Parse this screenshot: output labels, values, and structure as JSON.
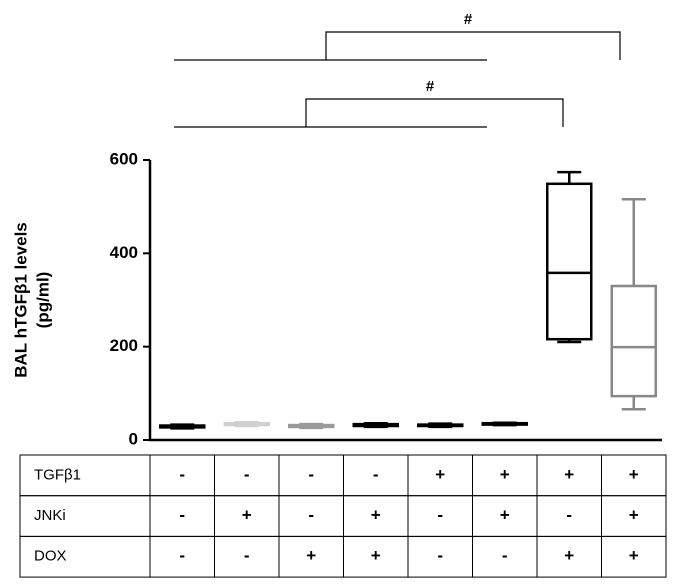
{
  "chart_data": {
    "type": "box",
    "ylabel": [
      "BAL hTGFβ1 levels",
      "(pg/ml)"
    ],
    "categories": [
      null,
      null,
      null,
      null,
      null,
      null,
      null,
      null
    ],
    "boxes": [
      {
        "min": 25,
        "q1": 27,
        "median": 29,
        "q3": 31,
        "max": 33,
        "color": "#000000"
      },
      {
        "min": 30,
        "q1": 32,
        "median": 34,
        "q3": 36,
        "max": 38,
        "color": "#d0d0d0"
      },
      {
        "min": 26,
        "q1": 28,
        "median": 30,
        "q3": 32,
        "max": 34,
        "color": "#999999"
      },
      {
        "min": 28,
        "q1": 30,
        "median": 32,
        "q3": 34,
        "max": 36,
        "color": "#000000"
      },
      {
        "min": 28,
        "q1": 30,
        "median": 31,
        "q3": 33,
        "max": 35,
        "color": "#000000"
      },
      {
        "min": 32,
        "q1": 33,
        "median": 35,
        "q3": 36,
        "max": 37,
        "color": "#000000"
      },
      {
        "min": 210,
        "q1": 216,
        "median": 358,
        "q3": 549,
        "max": 574,
        "color": "#000000"
      },
      {
        "min": 66,
        "q1": 94,
        "median": 199,
        "q3": 330,
        "max": 516,
        "color": "#888888"
      }
    ],
    "ylim": [
      0,
      600
    ],
    "yticks": [
      0,
      200,
      400,
      600
    ],
    "annotations": [
      "#",
      "#"
    ],
    "table": {
      "rows": [
        {
          "label": "TGFβ1",
          "values": [
            "-",
            "-",
            "-",
            "-",
            "+",
            "+",
            "+",
            "+"
          ]
        },
        {
          "label": "JNKi",
          "values": [
            "-",
            "+",
            "-",
            "+",
            "-",
            "+",
            "-",
            "+"
          ]
        },
        {
          "label": "DOX",
          "values": [
            "-",
            "-",
            "+",
            "+",
            "-",
            "-",
            "+",
            "+"
          ]
        }
      ]
    }
  }
}
